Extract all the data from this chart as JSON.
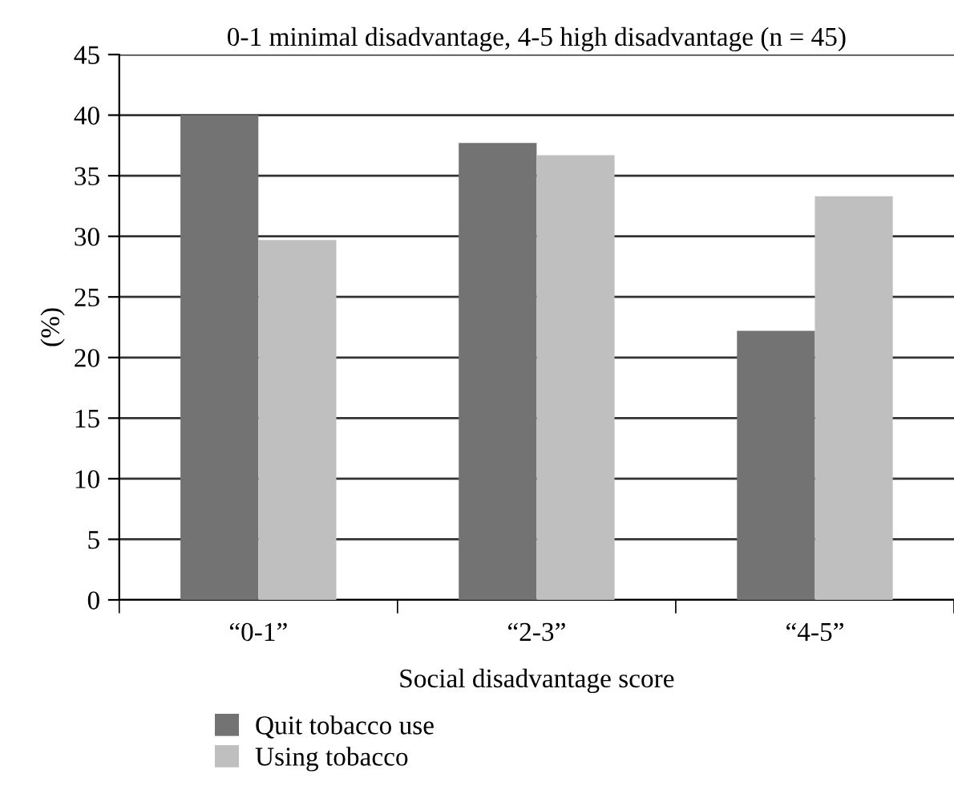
{
  "chart_data": {
    "type": "bar",
    "title": "0-1 minimal disadvantage, 4-5 high disadvantage (n = 45)",
    "xlabel": "Social disadvantage score",
    "ylabel": "(%)",
    "categories": [
      "“0-1”",
      "“2-3”",
      "“4-5”"
    ],
    "series": [
      {
        "name": "Quit tobacco use",
        "color": "#737373",
        "values": [
          40.0,
          37.7,
          22.2
        ]
      },
      {
        "name": "Using tobacco",
        "color": "#bfbfbf",
        "values": [
          29.7,
          36.7,
          33.3
        ]
      }
    ],
    "ylim": [
      0,
      45
    ],
    "yticks": [
      0,
      5,
      10,
      15,
      20,
      25,
      30,
      35,
      40,
      45
    ],
    "grid": "y",
    "legend": "bottom"
  }
}
